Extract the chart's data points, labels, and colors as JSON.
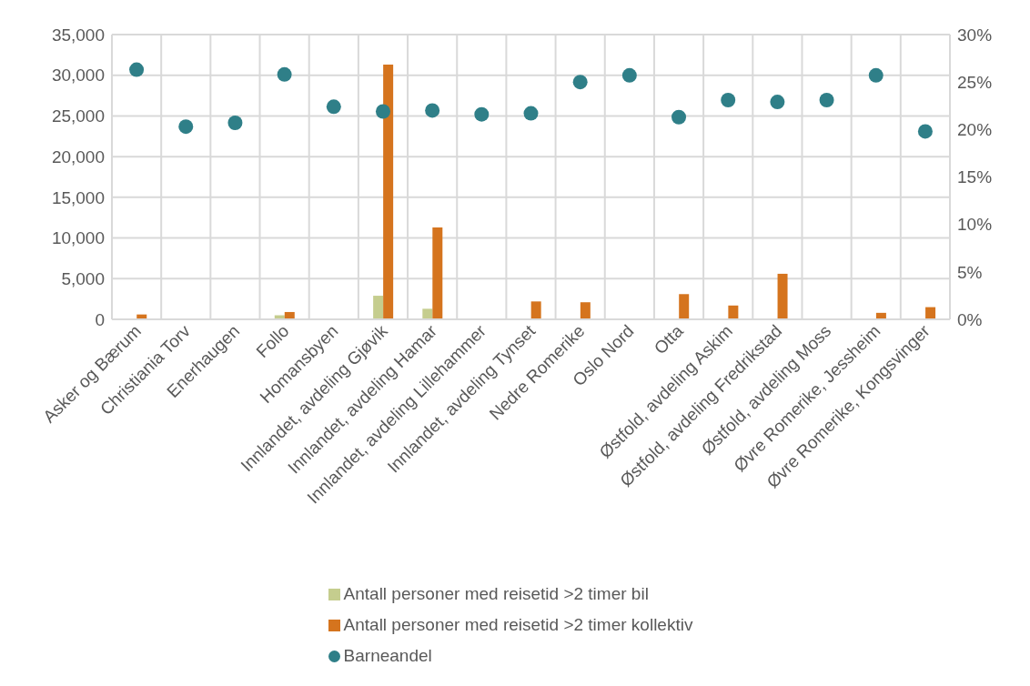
{
  "chart_data": {
    "type": "bar",
    "categories": [
      "Asker og Bærum",
      "Christiania Torv",
      "Enerhaugen",
      "Follo",
      "Homansbyen",
      "Innlandet, avdeling Gjøvik",
      "Innlandet, avdeling Hamar",
      "Innlandet, avdeling Lillehammer",
      "Innlandet, avdeling Tynset",
      "Nedre Romerike",
      "Oslo Nord",
      "Otta",
      "Østfold, avdeling Askim",
      "Østfold, avdeling Fredrikstad",
      "Østfold, avdeling Moss",
      "Øvre Romerike, Jessheim",
      "Øvre Romerike, Kongsvinger"
    ],
    "series": [
      {
        "name": "Antall personer med reisetid >2 timer bil",
        "color": "#c5cd8e",
        "values": [
          null,
          0,
          0,
          500,
          0,
          2900,
          1300,
          0,
          0,
          0,
          0,
          0,
          0,
          null,
          0,
          0,
          0
        ]
      },
      {
        "name": "Antall personer med reisetid >2 timer kollektiv",
        "color": "#d5741e",
        "values": [
          600,
          0,
          0,
          900,
          0,
          31300,
          11300,
          null,
          2200,
          2100,
          null,
          3100,
          1700,
          5600,
          0,
          800,
          1500
        ]
      },
      {
        "name": "Barneandel",
        "type": "scatter",
        "axis": "y2",
        "color": "#2f7f88",
        "values": [
          26.3,
          20.3,
          20.7,
          25.8,
          22.4,
          21.9,
          22.0,
          21.6,
          21.7,
          25.0,
          25.7,
          21.3,
          23.1,
          22.9,
          23.1,
          25.7,
          19.8
        ]
      }
    ],
    "ylim": [
      0,
      35000
    ],
    "yticks": [
      {
        "value": 0,
        "label": "0"
      },
      {
        "value": 5000,
        "label": "5,000"
      },
      {
        "value": 10000,
        "label": "10,000"
      },
      {
        "value": 15000,
        "label": "15,000"
      },
      {
        "value": 20000,
        "label": "20,000"
      },
      {
        "value": 25000,
        "label": "25,000"
      },
      {
        "value": 30000,
        "label": "30,000"
      },
      {
        "value": 35000,
        "label": "35,000"
      }
    ],
    "y2lim": [
      0,
      30
    ],
    "y2ticks": [
      {
        "value": 0,
        "label": "0%"
      },
      {
        "value": 5,
        "label": "5%"
      },
      {
        "value": 10,
        "label": "10%"
      },
      {
        "value": 15,
        "label": "15%"
      },
      {
        "value": 20,
        "label": "20%"
      },
      {
        "value": 25,
        "label": "25%"
      },
      {
        "value": 30,
        "label": "30%"
      }
    ],
    "grid": true,
    "legend": "bottom",
    "marker": "circle"
  }
}
